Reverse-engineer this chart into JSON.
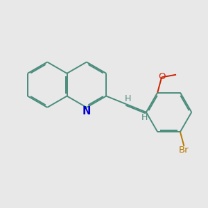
{
  "background_color": "#e8e8e8",
  "bond_color": "#4a8c7c",
  "nitrogen_color": "#0000cc",
  "bromine_color": "#b87800",
  "oxygen_color": "#cc2200",
  "bond_width": 1.4,
  "dbo": 0.055,
  "figsize": [
    3.0,
    3.0
  ],
  "dpi": 100,
  "xlim": [
    -0.5,
    8.5
  ],
  "ylim": [
    -2.0,
    3.5
  ],
  "font_size_atom": 9.5
}
